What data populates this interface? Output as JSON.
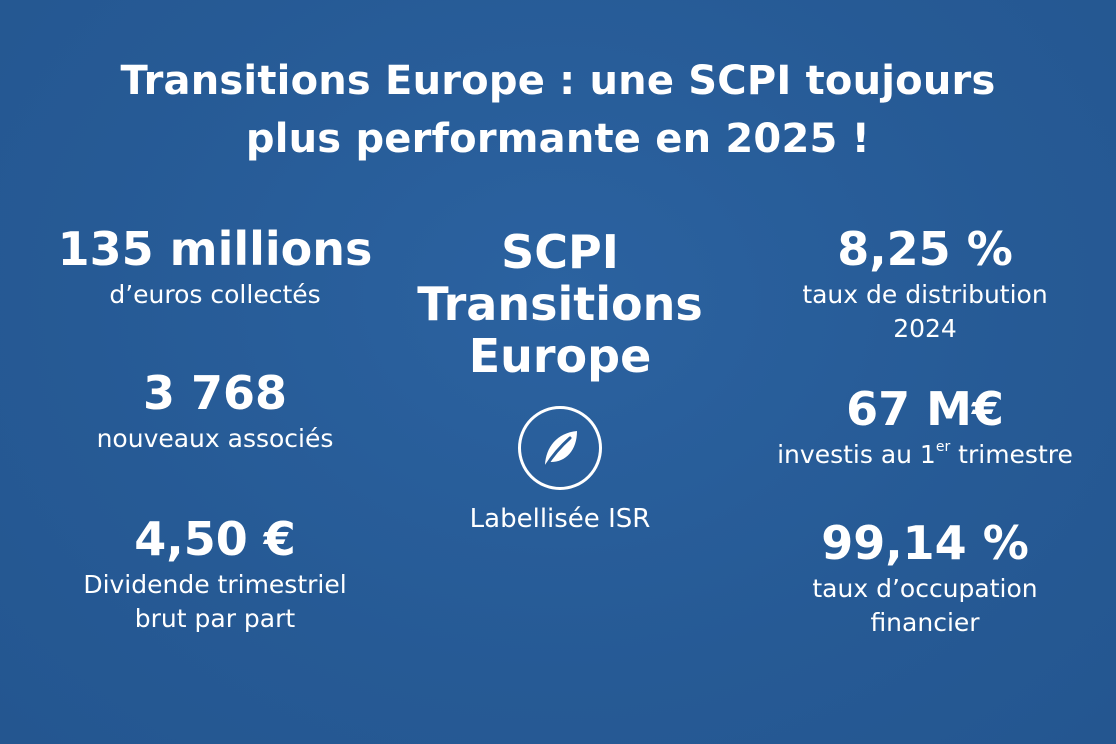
{
  "title": {
    "line1": "Transitions Europe : une SCPI toujours",
    "line2": "plus performante en 2025 !"
  },
  "left_stats": {
    "collecte": {
      "value": "135 millions",
      "label": "d’euros collectés"
    },
    "associes": {
      "value": "3 768",
      "label": "nouveaux associés"
    },
    "dividende": {
      "value": "4,50 €",
      "label_line1": "Dividende trimestriel",
      "label_line2": "brut par part"
    }
  },
  "center": {
    "title_line1": "SCPI",
    "title_line2": "Transitions",
    "title_line3": "Europe",
    "badge_icon": "leaf-icon",
    "badge_label": "Labellisée ISR"
  },
  "right_stats": {
    "distribution": {
      "value": "8,25 %",
      "label_line1": "taux de distribution",
      "label_line2": "2024"
    },
    "investis": {
      "value": "67 M€",
      "label_before": "investis au 1",
      "label_sup": "er",
      "label_after": " trimestre"
    },
    "occupation": {
      "value": "99,14 %",
      "label_line1": "taux d’occupation",
      "label_line2": "financier"
    }
  },
  "colors": {
    "background": "#275c98",
    "text": "#ffffff"
  }
}
